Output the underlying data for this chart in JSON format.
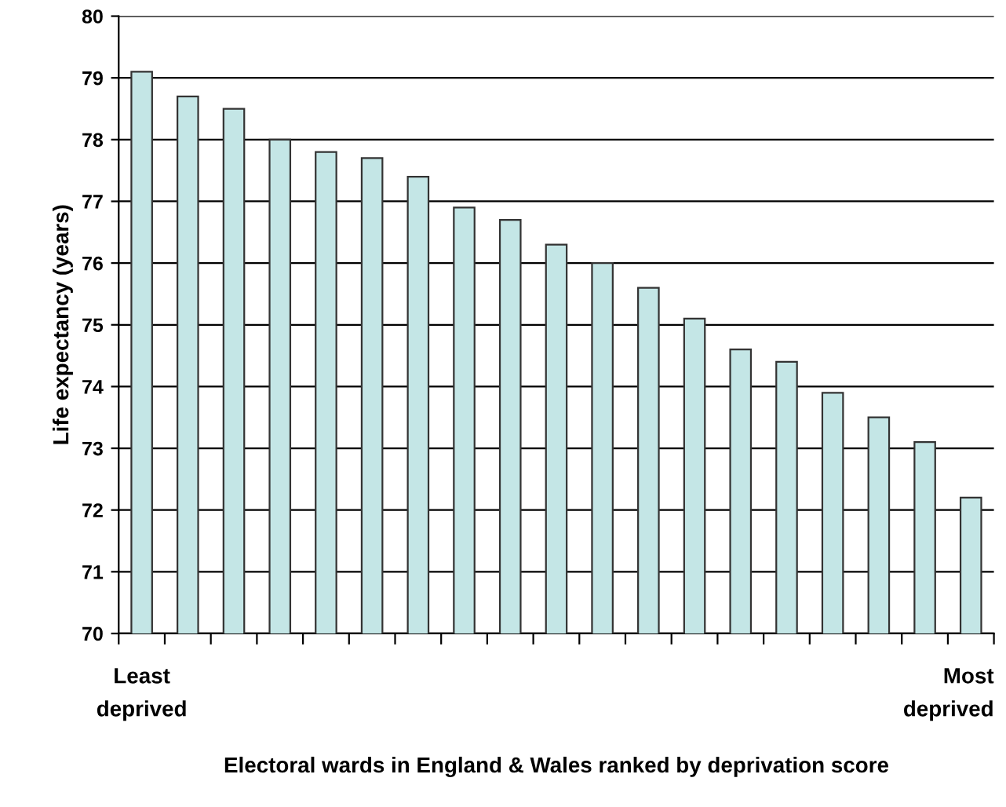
{
  "chart_data": {
    "type": "bar",
    "xlabel": "Electoral wards in England & Wales ranked by deprivation score",
    "ylabel": "Life expectancy (years)",
    "categories": [
      "Least\ndeprived",
      null,
      null,
      null,
      null,
      null,
      null,
      null,
      null,
      null,
      null,
      null,
      null,
      null,
      null,
      null,
      null,
      null,
      "Most\ndeprived"
    ],
    "values": [
      79.1,
      78.7,
      78.5,
      78.0,
      77.8,
      77.7,
      77.4,
      76.9,
      76.7,
      76.3,
      76.0,
      75.6,
      75.1,
      74.6,
      74.4,
      73.9,
      73.5,
      73.1,
      72.2
    ],
    "color": "#c4e6e6",
    "ylim": [
      70,
      80
    ],
    "yticks": [
      70,
      71,
      72,
      73,
      74,
      75,
      76,
      77,
      78,
      79,
      80
    ],
    "grid": "y",
    "legend": false
  }
}
